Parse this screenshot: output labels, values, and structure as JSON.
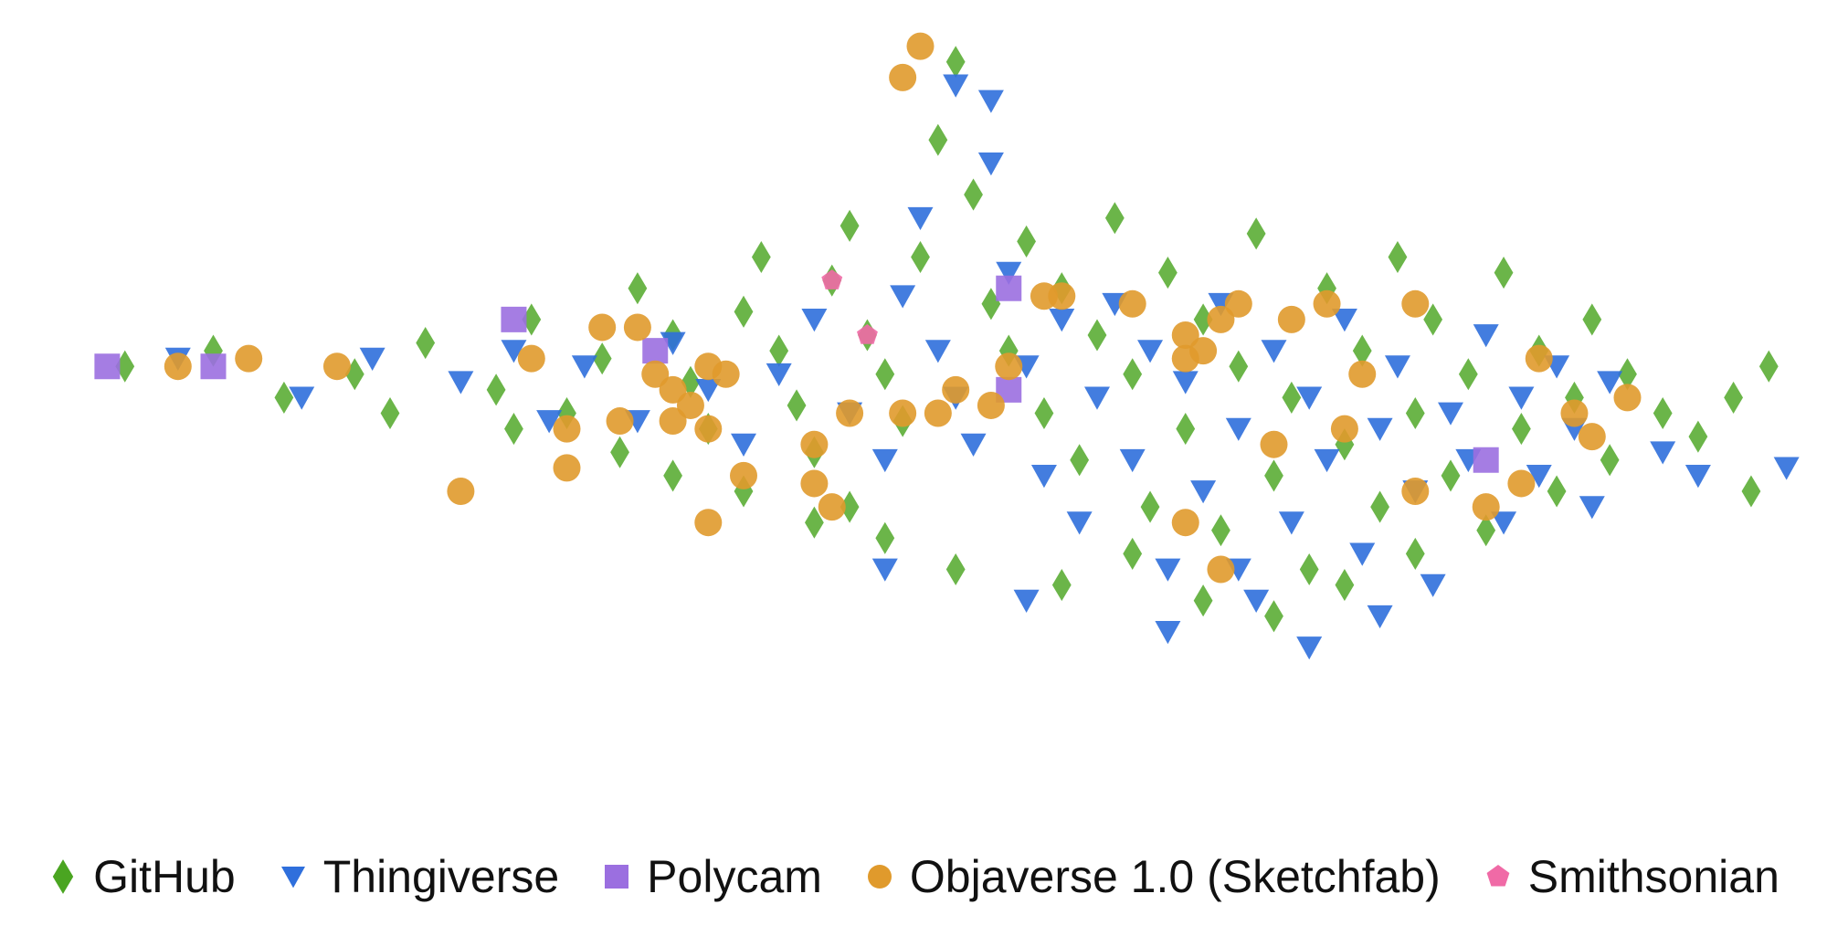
{
  "chart_data": {
    "type": "scatter",
    "title": "",
    "xlabel": "",
    "ylabel": "",
    "axes_visible": false,
    "grid": false,
    "legend_position": "bottom",
    "xlim": [
      0,
      100
    ],
    "ylim": [
      0,
      100
    ],
    "series": [
      {
        "name": "GitHub",
        "marker": "diamond",
        "color": "#4aa521",
        "points": [
          [
            5,
            56
          ],
          [
            10,
            58
          ],
          [
            14,
            52
          ],
          [
            18,
            55
          ],
          [
            22,
            59
          ],
          [
            26,
            53
          ],
          [
            28,
            62
          ],
          [
            30,
            50
          ],
          [
            32,
            57
          ],
          [
            33,
            45
          ],
          [
            34,
            66
          ],
          [
            36,
            60
          ],
          [
            37,
            54
          ],
          [
            38,
            48
          ],
          [
            40,
            63
          ],
          [
            41,
            70
          ],
          [
            42,
            58
          ],
          [
            43,
            51
          ],
          [
            44,
            45
          ],
          [
            45,
            67
          ],
          [
            46,
            74
          ],
          [
            47,
            60
          ],
          [
            48,
            55
          ],
          [
            49,
            49
          ],
          [
            50,
            70
          ],
          [
            51,
            85
          ],
          [
            52,
            95
          ],
          [
            53,
            78
          ],
          [
            54,
            64
          ],
          [
            55,
            58
          ],
          [
            56,
            72
          ],
          [
            57,
            50
          ],
          [
            58,
            66
          ],
          [
            59,
            44
          ],
          [
            60,
            60
          ],
          [
            61,
            75
          ],
          [
            62,
            55
          ],
          [
            63,
            38
          ],
          [
            64,
            68
          ],
          [
            65,
            48
          ],
          [
            66,
            62
          ],
          [
            67,
            35
          ],
          [
            68,
            56
          ],
          [
            69,
            73
          ],
          [
            70,
            42
          ],
          [
            71,
            52
          ],
          [
            72,
            30
          ],
          [
            73,
            66
          ],
          [
            74,
            46
          ],
          [
            75,
            58
          ],
          [
            76,
            38
          ],
          [
            77,
            70
          ],
          [
            78,
            50
          ],
          [
            79,
            62
          ],
          [
            80,
            42
          ],
          [
            81,
            55
          ],
          [
            82,
            35
          ],
          [
            83,
            68
          ],
          [
            84,
            48
          ],
          [
            85,
            58
          ],
          [
            86,
            40
          ],
          [
            87,
            52
          ],
          [
            88,
            62
          ],
          [
            89,
            44
          ],
          [
            90,
            55
          ],
          [
            92,
            50
          ],
          [
            94,
            47
          ],
          [
            96,
            52
          ],
          [
            97,
            40
          ],
          [
            98,
            56
          ],
          [
            46,
            38
          ],
          [
            48,
            34
          ],
          [
            52,
            30
          ],
          [
            58,
            28
          ],
          [
            62,
            32
          ],
          [
            66,
            26
          ],
          [
            70,
            24
          ],
          [
            74,
            28
          ],
          [
            78,
            32
          ],
          [
            36,
            42
          ],
          [
            40,
            40
          ],
          [
            44,
            36
          ],
          [
            27,
            48
          ],
          [
            20,
            50
          ]
        ]
      },
      {
        "name": "Thingiverse",
        "marker": "triangle-down",
        "color": "#2f6fdc",
        "points": [
          [
            8,
            57
          ],
          [
            15,
            52
          ],
          [
            19,
            57
          ],
          [
            24,
            54
          ],
          [
            27,
            58
          ],
          [
            29,
            49
          ],
          [
            31,
            56
          ],
          [
            34,
            49
          ],
          [
            36,
            59
          ],
          [
            38,
            53
          ],
          [
            40,
            46
          ],
          [
            42,
            55
          ],
          [
            44,
            62
          ],
          [
            46,
            50
          ],
          [
            48,
            44
          ],
          [
            49,
            65
          ],
          [
            50,
            75
          ],
          [
            51,
            58
          ],
          [
            52,
            52
          ],
          [
            53,
            46
          ],
          [
            54,
            82
          ],
          [
            55,
            68
          ],
          [
            56,
            56
          ],
          [
            57,
            42
          ],
          [
            58,
            62
          ],
          [
            59,
            36
          ],
          [
            60,
            52
          ],
          [
            61,
            64
          ],
          [
            62,
            44
          ],
          [
            63,
            58
          ],
          [
            64,
            30
          ],
          [
            65,
            54
          ],
          [
            66,
            40
          ],
          [
            67,
            64
          ],
          [
            68,
            48
          ],
          [
            69,
            26
          ],
          [
            70,
            58
          ],
          [
            71,
            36
          ],
          [
            72,
            52
          ],
          [
            73,
            44
          ],
          [
            74,
            62
          ],
          [
            75,
            32
          ],
          [
            76,
            48
          ],
          [
            77,
            56
          ],
          [
            78,
            40
          ],
          [
            79,
            28
          ],
          [
            80,
            50
          ],
          [
            81,
            44
          ],
          [
            82,
            60
          ],
          [
            83,
            36
          ],
          [
            84,
            52
          ],
          [
            85,
            42
          ],
          [
            86,
            56
          ],
          [
            87,
            48
          ],
          [
            88,
            38
          ],
          [
            89,
            54
          ],
          [
            92,
            45
          ],
          [
            94,
            42
          ],
          [
            99,
            43
          ],
          [
            48,
            30
          ],
          [
            56,
            26
          ],
          [
            64,
            22
          ],
          [
            72,
            20
          ],
          [
            76,
            24
          ],
          [
            68,
            30
          ],
          [
            52,
            92
          ],
          [
            54,
            90
          ]
        ]
      },
      {
        "name": "Polycam",
        "marker": "square",
        "color": "#9b6fe0",
        "points": [
          [
            4,
            56
          ],
          [
            10,
            56
          ],
          [
            27,
            62
          ],
          [
            35,
            58
          ],
          [
            55,
            53
          ],
          [
            55,
            66
          ],
          [
            82,
            44
          ]
        ]
      },
      {
        "name": "Objaverse 1.0 (Sketchfab)",
        "marker": "circle",
        "color": "#e09a2c",
        "points": [
          [
            8,
            56
          ],
          [
            12,
            57
          ],
          [
            17,
            56
          ],
          [
            28,
            57
          ],
          [
            32,
            61
          ],
          [
            34,
            61
          ],
          [
            35,
            55
          ],
          [
            36,
            53
          ],
          [
            37,
            51
          ],
          [
            38,
            56
          ],
          [
            39,
            55
          ],
          [
            30,
            48
          ],
          [
            33,
            49
          ],
          [
            36,
            49
          ],
          [
            38,
            48
          ],
          [
            40,
            42
          ],
          [
            44,
            41
          ],
          [
            44,
            46
          ],
          [
            46,
            50
          ],
          [
            49,
            50
          ],
          [
            51,
            50
          ],
          [
            52,
            53
          ],
          [
            54,
            51
          ],
          [
            55,
            56
          ],
          [
            57,
            65
          ],
          [
            58,
            65
          ],
          [
            62,
            64
          ],
          [
            65,
            60
          ],
          [
            65,
            57
          ],
          [
            66,
            58
          ],
          [
            67,
            62
          ],
          [
            68,
            64
          ],
          [
            71,
            62
          ],
          [
            73,
            64
          ],
          [
            65,
            36
          ],
          [
            67,
            30
          ],
          [
            70,
            46
          ],
          [
            74,
            48
          ],
          [
            75,
            55
          ],
          [
            78,
            64
          ],
          [
            78,
            40
          ],
          [
            82,
            38
          ],
          [
            84,
            41
          ],
          [
            85,
            57
          ],
          [
            87,
            50
          ],
          [
            90,
            52
          ],
          [
            88,
            47
          ],
          [
            50,
            97
          ],
          [
            49,
            93
          ],
          [
            30,
            43
          ],
          [
            45,
            38
          ],
          [
            24,
            40
          ],
          [
            38,
            36
          ]
        ]
      },
      {
        "name": "Smithsonian",
        "marker": "pentagon",
        "color": "#f06aa6",
        "points": [
          [
            45,
            67
          ],
          [
            47,
            60
          ]
        ]
      }
    ]
  },
  "legend": [
    {
      "label": "GitHub",
      "marker": "diamond",
      "color": "#4aa521"
    },
    {
      "label": "Thingiverse",
      "marker": "triangle-down",
      "color": "#2f6fdc"
    },
    {
      "label": "Polycam",
      "marker": "square",
      "color": "#9b6fe0"
    },
    {
      "label": "Objaverse 1.0 (Sketchfab)",
      "marker": "circle",
      "color": "#e09a2c"
    },
    {
      "label": "Smithsonian",
      "marker": "pentagon",
      "color": "#f06aa6"
    }
  ]
}
